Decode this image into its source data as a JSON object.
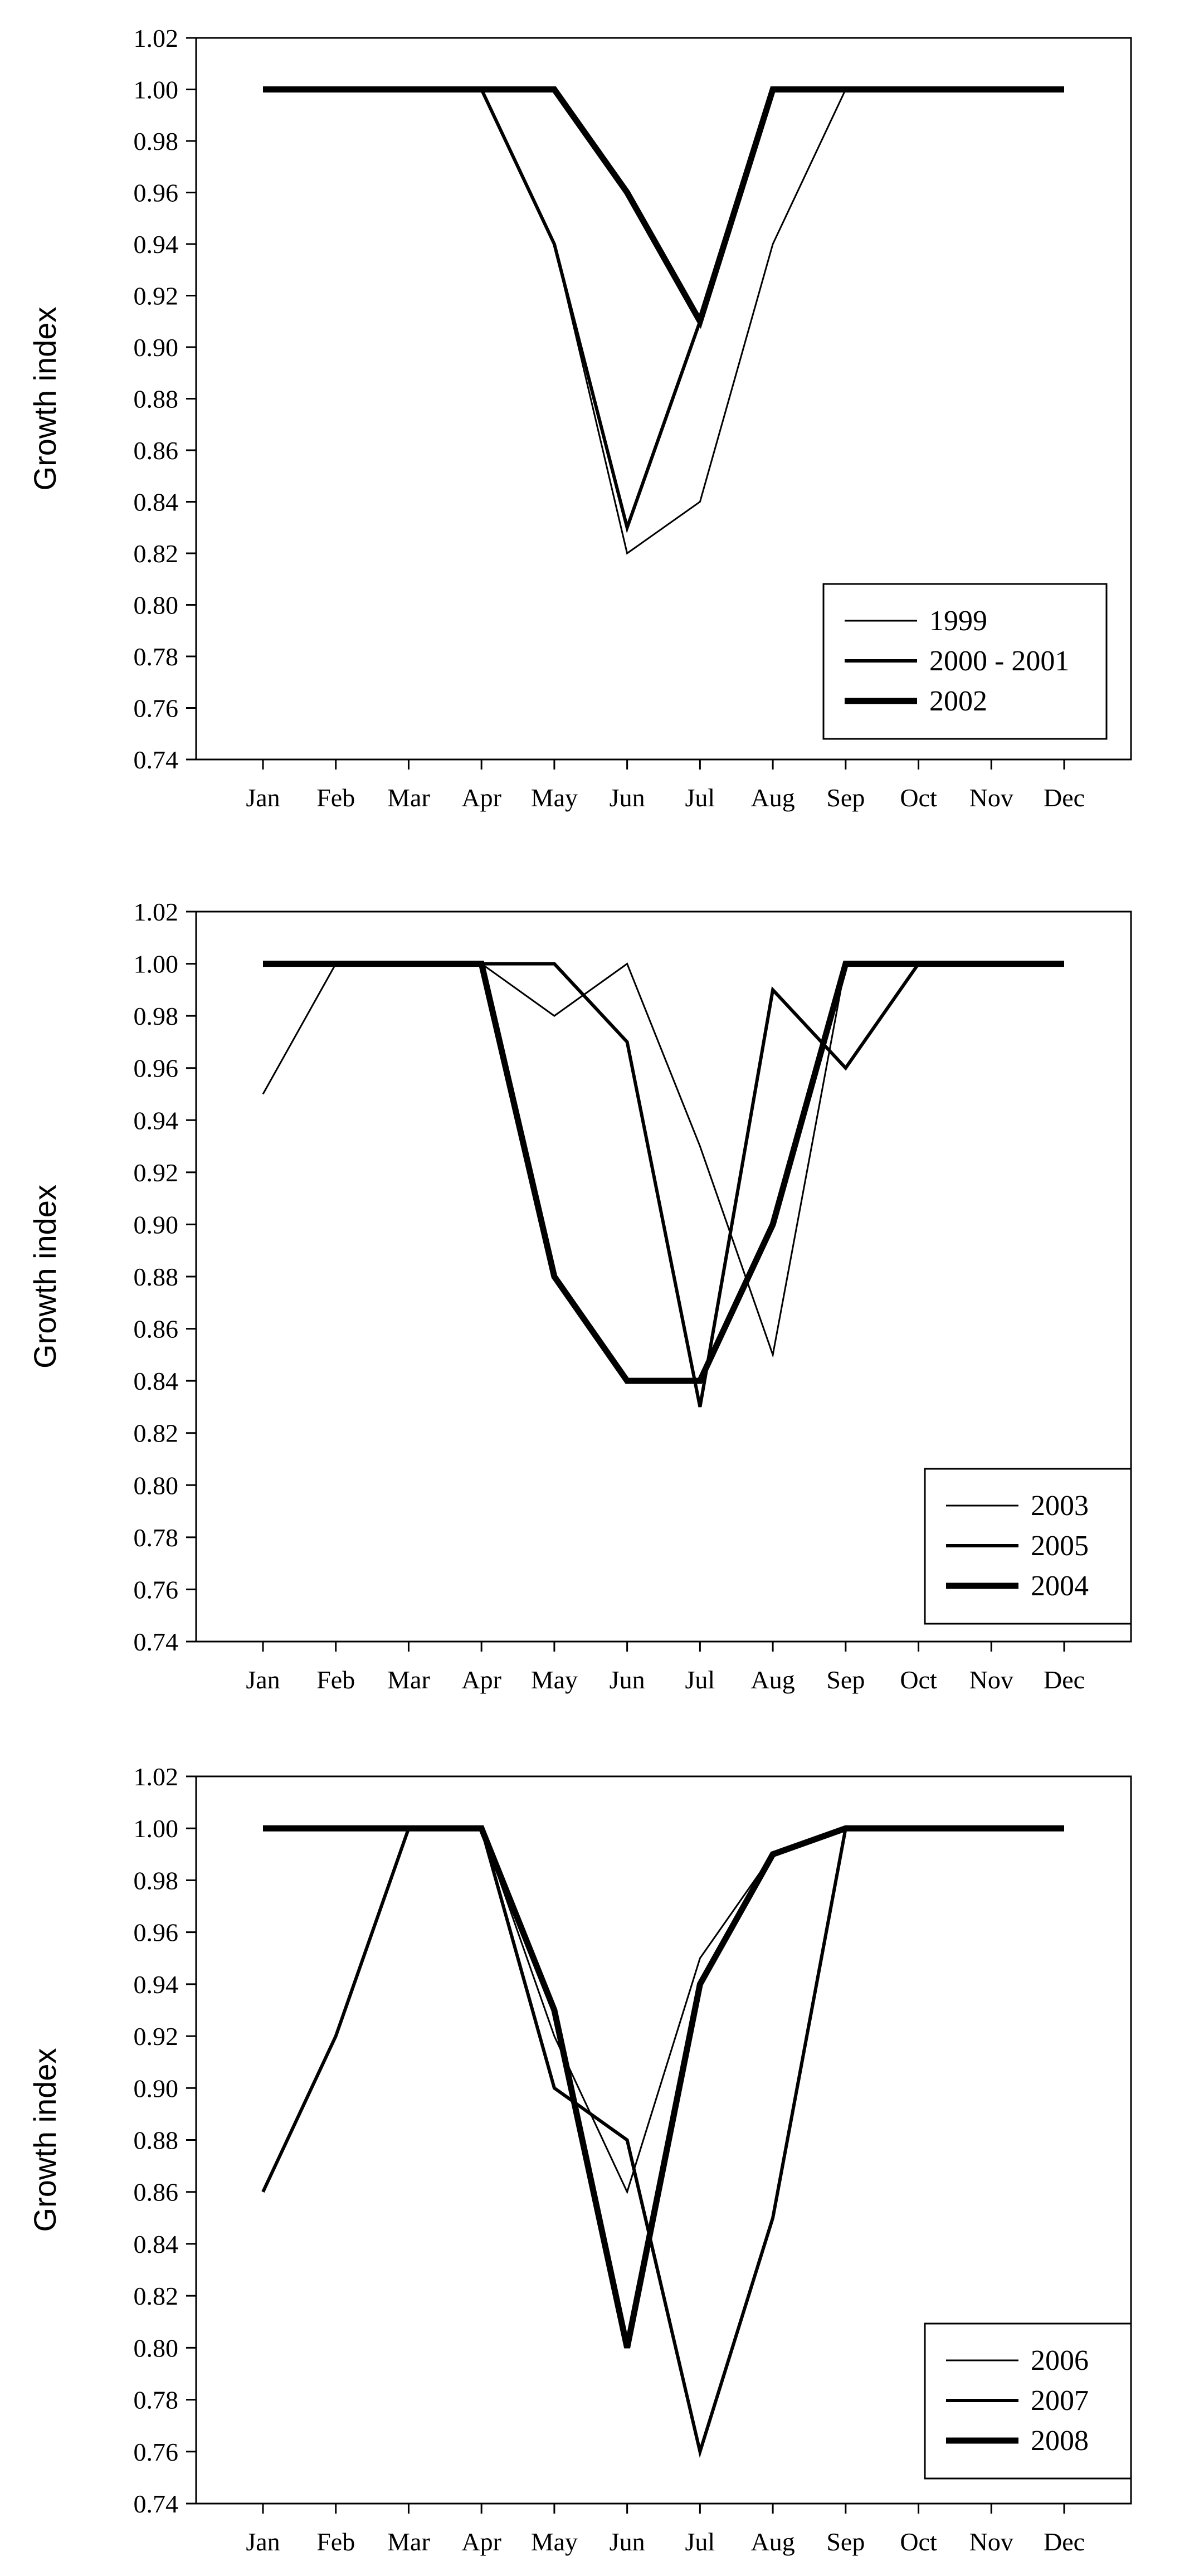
{
  "chart_data": [
    {
      "type": "line",
      "title": "",
      "xlabel": "",
      "ylabel": "Growth index",
      "ylim": [
        0.74,
        1.02
      ],
      "y_ticks": [
        "0.74",
        "0.76",
        "0.78",
        "0.80",
        "0.82",
        "0.84",
        "0.86",
        "0.88",
        "0.90",
        "0.92",
        "0.94",
        "0.96",
        "0.98",
        "1.00",
        "1.02"
      ],
      "categories": [
        "Jan",
        "Feb",
        "Mar",
        "Apr",
        "May",
        "Jun",
        "Jul",
        "Aug",
        "Sep",
        "Oct",
        "Nov",
        "Dec"
      ],
      "grid": false,
      "legend_position": "bottom-right",
      "series": [
        {
          "name": "1999",
          "line_weight": "thin",
          "values": [
            1.0,
            1.0,
            1.0,
            1.0,
            0.94,
            0.82,
            0.84,
            0.94,
            1.0,
            1.0,
            1.0,
            1.0
          ]
        },
        {
          "name": "2000 - 2001",
          "line_weight": "medium",
          "values": [
            1.0,
            1.0,
            1.0,
            1.0,
            0.94,
            0.83,
            0.91,
            1.0,
            1.0,
            1.0,
            1.0,
            1.0
          ]
        },
        {
          "name": "2002",
          "line_weight": "thick",
          "values": [
            1.0,
            1.0,
            1.0,
            1.0,
            1.0,
            0.96,
            0.91,
            1.0,
            1.0,
            1.0,
            1.0,
            1.0
          ]
        }
      ]
    },
    {
      "type": "line",
      "title": "",
      "xlabel": "",
      "ylabel": "Growth index",
      "ylim": [
        0.74,
        1.02
      ],
      "y_ticks": [
        "0.74",
        "0.76",
        "0.78",
        "0.80",
        "0.82",
        "0.84",
        "0.86",
        "0.88",
        "0.90",
        "0.92",
        "0.94",
        "0.96",
        "0.98",
        "1.00",
        "1.02"
      ],
      "categories": [
        "Jan",
        "Feb",
        "Mar",
        "Apr",
        "May",
        "Jun",
        "Jul",
        "Aug",
        "Sep",
        "Oct",
        "Nov",
        "Dec"
      ],
      "grid": false,
      "legend_position": "bottom-right",
      "series": [
        {
          "name": "2003",
          "line_weight": "thin",
          "values": [
            0.95,
            1.0,
            1.0,
            1.0,
            0.98,
            1.0,
            0.93,
            0.85,
            1.0,
            1.0,
            1.0,
            1.0
          ]
        },
        {
          "name": "2005",
          "line_weight": "medium",
          "values": [
            1.0,
            1.0,
            1.0,
            1.0,
            1.0,
            0.97,
            0.83,
            0.99,
            0.96,
            1.0,
            1.0,
            1.0
          ]
        },
        {
          "name": "2004",
          "line_weight": "thick",
          "values": [
            1.0,
            1.0,
            1.0,
            1.0,
            0.88,
            0.84,
            0.84,
            0.9,
            1.0,
            1.0,
            1.0,
            1.0
          ]
        }
      ]
    },
    {
      "type": "line",
      "title": "",
      "xlabel": "",
      "ylabel": "Growth index",
      "ylim": [
        0.74,
        1.02
      ],
      "y_ticks": [
        "0.74",
        "0.76",
        "0.78",
        "0.80",
        "0.82",
        "0.84",
        "0.86",
        "0.88",
        "0.90",
        "0.92",
        "0.94",
        "0.96",
        "0.98",
        "1.00",
        "1.02"
      ],
      "categories": [
        "Jan",
        "Feb",
        "Mar",
        "Apr",
        "May",
        "Jun",
        "Jul",
        "Aug",
        "Sep",
        "Oct",
        "Nov",
        "Dec"
      ],
      "grid": false,
      "legend_position": "bottom-right",
      "series": [
        {
          "name": "2006",
          "line_weight": "thin",
          "values": [
            1.0,
            1.0,
            1.0,
            1.0,
            0.92,
            0.86,
            0.95,
            0.99,
            1.0,
            1.0,
            1.0,
            1.0
          ]
        },
        {
          "name": "2007",
          "line_weight": "medium",
          "values": [
            0.86,
            0.92,
            1.0,
            1.0,
            0.9,
            0.88,
            0.76,
            0.85,
            1.0,
            1.0,
            1.0,
            1.0
          ]
        },
        {
          "name": "2008",
          "line_weight": "thick",
          "values": [
            1.0,
            1.0,
            1.0,
            1.0,
            0.93,
            0.8,
            0.94,
            0.99,
            1.0,
            1.0,
            1.0,
            1.0
          ]
        }
      ]
    }
  ]
}
